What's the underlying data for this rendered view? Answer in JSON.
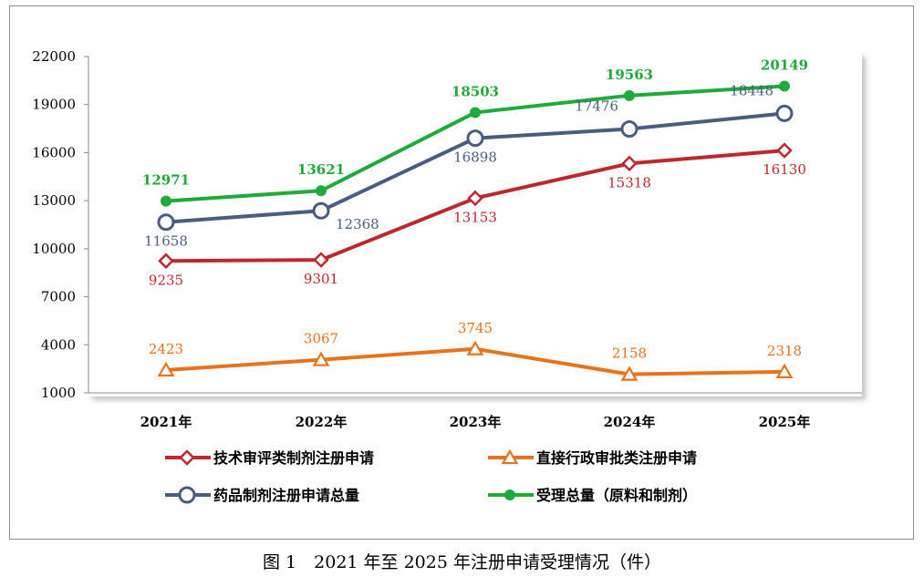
{
  "chart_data": {
    "type": "line",
    "categories": [
      "2021年",
      "2022年",
      "2023年",
      "2024年",
      "2025年"
    ],
    "ylim": [
      1000,
      22000
    ],
    "yticks": [
      1000,
      4000,
      7000,
      10000,
      13000,
      16000,
      19000,
      22000
    ],
    "grid": false,
    "legend_position": "bottom",
    "series": [
      {
        "name": "技术审评类制剂注册申请",
        "values": [
          9235,
          9301,
          13153,
          15318,
          16130
        ],
        "color": "#c0272d",
        "marker": "diamond-open",
        "label_pos": [
          "below",
          "below",
          "below",
          "below",
          "below"
        ]
      },
      {
        "name": "直接行政审批类注册申请",
        "values": [
          2423,
          3067,
          3745,
          2158,
          2318
        ],
        "color": "#e8731c",
        "marker": "triangle-open",
        "label_pos": [
          "above",
          "above",
          "above",
          "above",
          "above"
        ]
      },
      {
        "name": "药品制剂注册申请总量",
        "values": [
          11658,
          12368,
          16898,
          17476,
          18448
        ],
        "color": "#4a5d7e",
        "marker": "circle-open",
        "label_pos": [
          "below",
          "right",
          "below",
          "above-left",
          "above-left"
        ]
      },
      {
        "name": "受理总量（原料和制剂）",
        "values": [
          12971,
          13621,
          18503,
          19563,
          20149
        ],
        "color": "#1faa3c",
        "marker": "circle-filled",
        "label_pos": [
          "above",
          "above",
          "above",
          "above",
          "above"
        ],
        "label_bold": true
      }
    ]
  },
  "caption": "图 1　2021 年至 2025 年注册申请受理情况（件）"
}
